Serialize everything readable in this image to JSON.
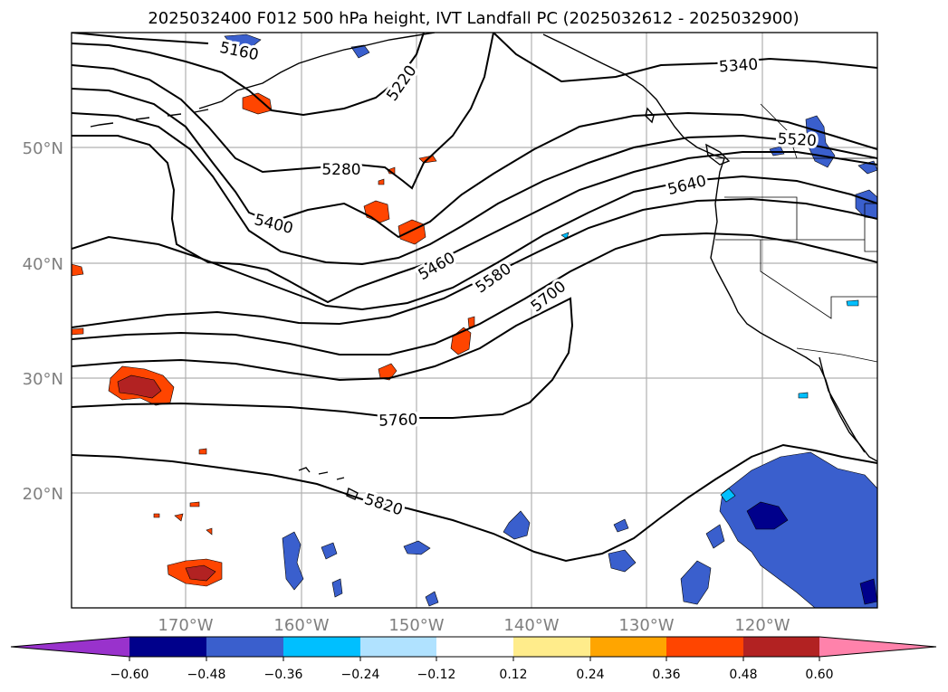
{
  "title": "2025032400 F012 500 hPa height, IVT Landfall PC (2025032612 - 2025032900)",
  "latitude_labels": [
    "50°N",
    "40°N",
    "30°N",
    "20°N"
  ],
  "longitude_labels": [
    "170°W",
    "160°W",
    "150°W",
    "140°W",
    "130°W",
    "120°W"
  ],
  "contour_labels": [
    "5160",
    "5220",
    "5280",
    "5340",
    "5400",
    "5460",
    "5520",
    "5580",
    "5640",
    "5700",
    "5760",
    "5820"
  ],
  "colorbar": {
    "ticks": [
      "−0.60",
      "−0.48",
      "−0.36",
      "−0.24",
      "−0.12",
      "0.12",
      "0.24",
      "0.36",
      "0.48",
      "0.60"
    ],
    "colors": [
      "#9932cc",
      "#00008b",
      "#3a5fcd",
      "#00bfff",
      "#b0e2ff",
      "#ffffff",
      "#ffec8b",
      "#ffa500",
      "#ff4500",
      "#b22222",
      "#ff82ab"
    ]
  },
  "fill_colors": {
    "neg_light": "#b0e2ff",
    "neg_mid": "#00bfff",
    "neg_strong": "#3a5fcd",
    "neg_max": "#00008b",
    "pos_light": "#ffec8b",
    "pos_mid": "#ffa500",
    "pos_strong": "#ff4500",
    "pos_max": "#b22222"
  }
}
